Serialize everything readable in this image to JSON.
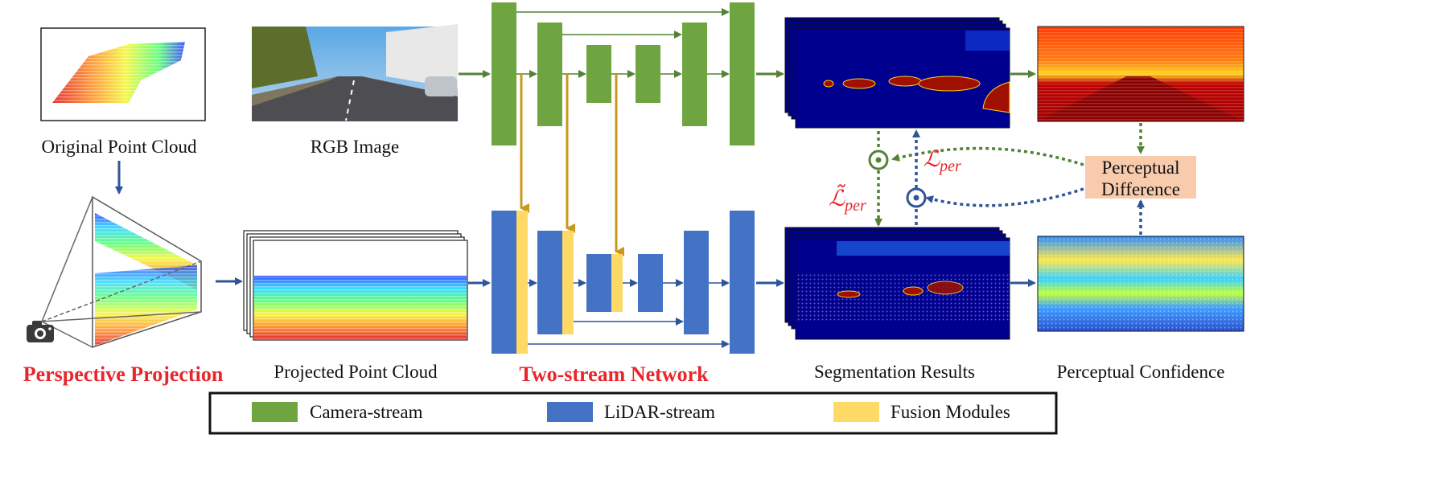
{
  "captions": {
    "original_point_cloud": "Original Point Cloud",
    "rgb_image": "RGB Image",
    "perspective_projection": "Perspective Projection",
    "projected_point_cloud": "Projected Point Cloud",
    "two_stream_network": "Two-stream Network",
    "segmentation_results": "Segmentation Results",
    "perceptual_confidence": "Perceptual Confidence"
  },
  "perceptual_difference": {
    "line1": "Perceptual",
    "line2": "Difference"
  },
  "losses": {
    "l_per": "ℒ",
    "l_per_sub": "per",
    "l_per_tilde": "ℒ̃",
    "l_per_tilde_sub": "per"
  },
  "legend": {
    "camera": "Camera-stream",
    "lidar": "LiDAR-stream",
    "fusion": "Fusion Modules"
  },
  "colors": {
    "camera": "#6ea540",
    "lidar": "#4472c4",
    "fusion": "#ffd966",
    "fusion_arrow": "#c99a1a",
    "highlight_red": "#e8262b",
    "perceptual_box": "#f8cbad",
    "seg_background": "#00008f"
  }
}
